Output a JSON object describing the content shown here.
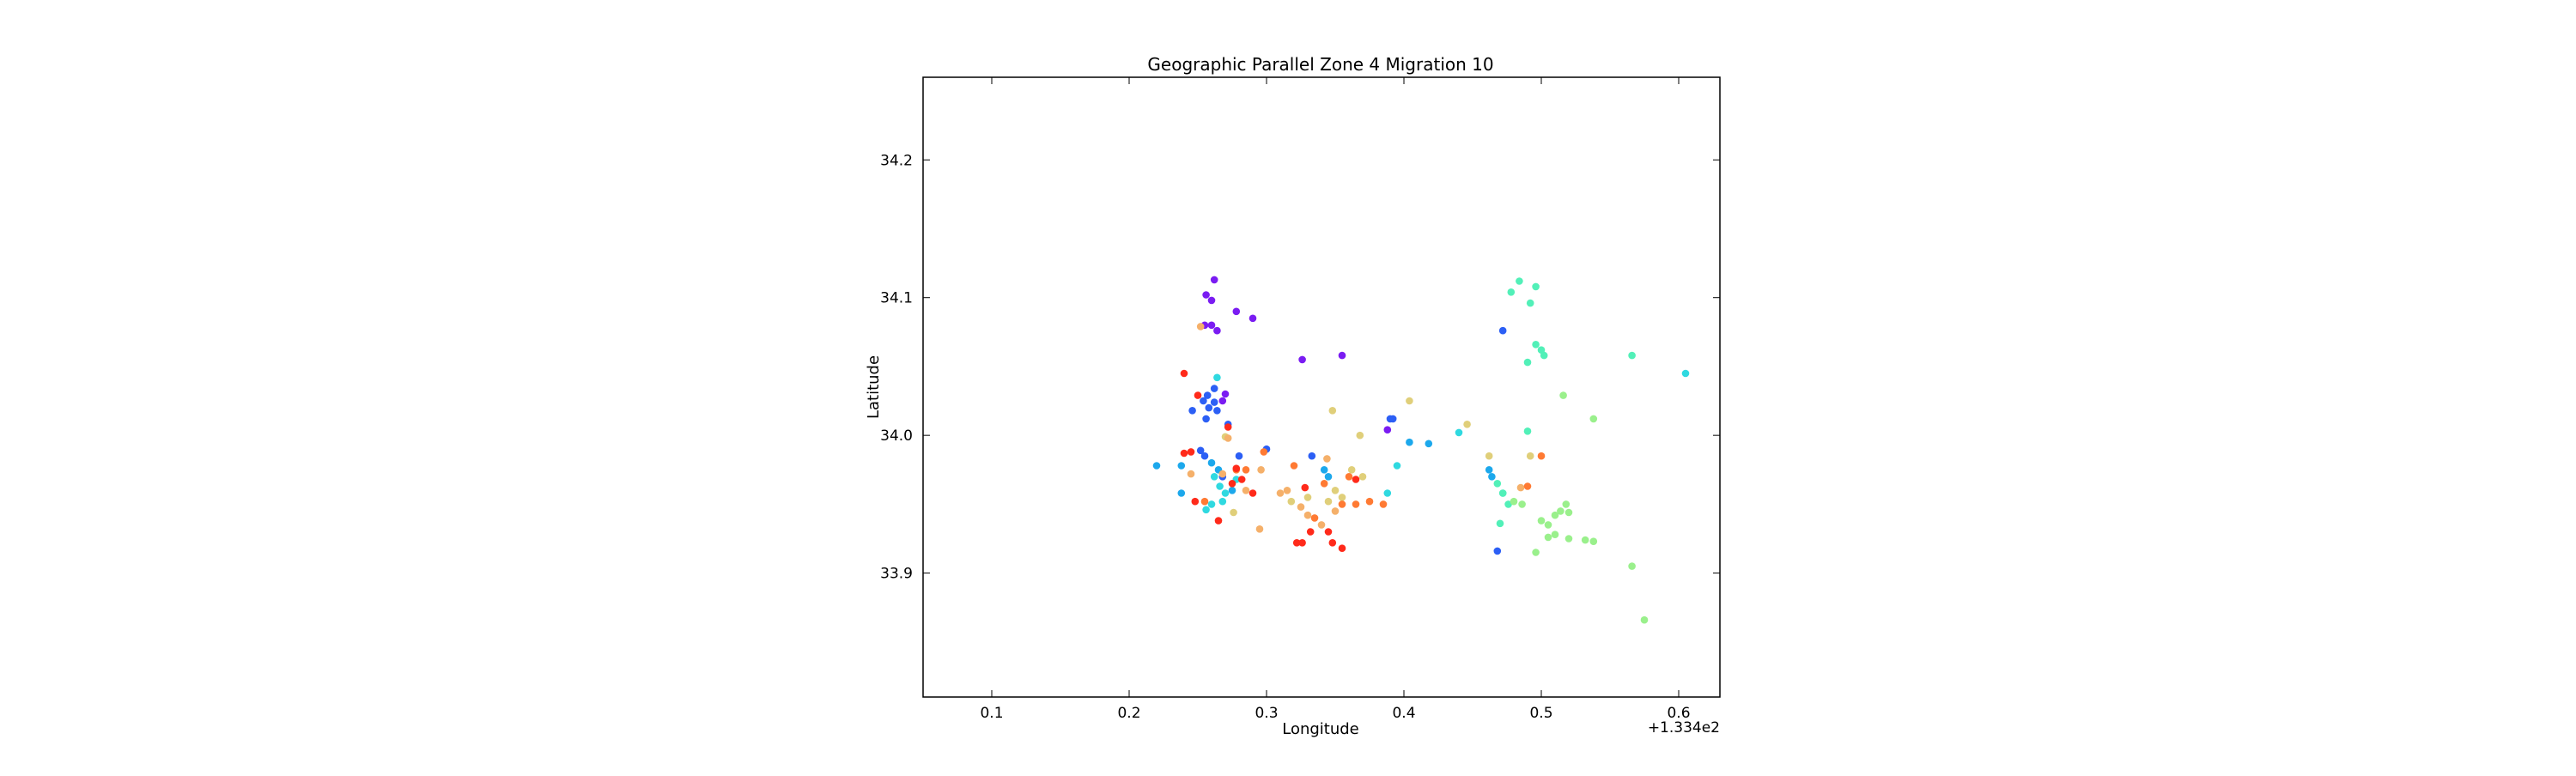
{
  "chart_data": {
    "type": "scatter",
    "title": "Geographic Parallel Zone 4 Migration 10",
    "xlabel": "Longitude",
    "ylabel": "Latitude",
    "offset_label": "+1.334e2",
    "xlim": [
      0.05,
      0.63
    ],
    "ylim": [
      33.81,
      34.26
    ],
    "xticks": [
      0.1,
      0.2,
      0.3,
      0.4,
      0.5,
      0.6
    ],
    "xtick_labels": [
      "0.1",
      "0.2",
      "0.3",
      "0.4",
      "0.5",
      "0.6"
    ],
    "yticks": [
      33.9,
      34.0,
      34.1,
      34.2
    ],
    "ytick_labels": [
      "33.9",
      "34.0",
      "34.1",
      "34.2"
    ],
    "grid": false,
    "colors": {
      "purple": "#7a1cf2",
      "blue": "#2c5ff5",
      "skyblue": "#1ca8ec",
      "cyan": "#2fd9e0",
      "aquamarine": "#52f0b8",
      "lightgreen": "#9af08c",
      "khaki": "#e0cf7a",
      "lightorange": "#f5b06a",
      "orange": "#ff7a33",
      "red": "#ff2a1a"
    },
    "points": [
      {
        "x": 0.262,
        "y": 34.113,
        "c": "purple"
      },
      {
        "x": 0.256,
        "y": 34.102,
        "c": "purple"
      },
      {
        "x": 0.26,
        "y": 34.098,
        "c": "purple"
      },
      {
        "x": 0.278,
        "y": 34.09,
        "c": "purple"
      },
      {
        "x": 0.29,
        "y": 34.085,
        "c": "purple"
      },
      {
        "x": 0.255,
        "y": 34.08,
        "c": "purple"
      },
      {
        "x": 0.26,
        "y": 34.08,
        "c": "purple"
      },
      {
        "x": 0.264,
        "y": 34.076,
        "c": "purple"
      },
      {
        "x": 0.326,
        "y": 34.055,
        "c": "purple"
      },
      {
        "x": 0.355,
        "y": 34.058,
        "c": "purple"
      },
      {
        "x": 0.388,
        "y": 34.004,
        "c": "purple"
      },
      {
        "x": 0.27,
        "y": 34.03,
        "c": "purple"
      },
      {
        "x": 0.268,
        "y": 34.025,
        "c": "purple"
      },
      {
        "x": 0.257,
        "y": 34.029,
        "c": "blue"
      },
      {
        "x": 0.262,
        "y": 34.034,
        "c": "blue"
      },
      {
        "x": 0.254,
        "y": 34.025,
        "c": "blue"
      },
      {
        "x": 0.258,
        "y": 34.02,
        "c": "blue"
      },
      {
        "x": 0.246,
        "y": 34.018,
        "c": "blue"
      },
      {
        "x": 0.256,
        "y": 34.012,
        "c": "blue"
      },
      {
        "x": 0.264,
        "y": 34.018,
        "c": "blue"
      },
      {
        "x": 0.262,
        "y": 34.024,
        "c": "blue"
      },
      {
        "x": 0.272,
        "y": 34.008,
        "c": "blue"
      },
      {
        "x": 0.252,
        "y": 33.989,
        "c": "blue"
      },
      {
        "x": 0.255,
        "y": 33.985,
        "c": "blue"
      },
      {
        "x": 0.3,
        "y": 33.99,
        "c": "blue"
      },
      {
        "x": 0.28,
        "y": 33.985,
        "c": "blue"
      },
      {
        "x": 0.392,
        "y": 34.012,
        "c": "blue"
      },
      {
        "x": 0.39,
        "y": 34.012,
        "c": "blue"
      },
      {
        "x": 0.472,
        "y": 34.076,
        "c": "blue"
      },
      {
        "x": 0.333,
        "y": 33.985,
        "c": "blue"
      },
      {
        "x": 0.468,
        "y": 33.916,
        "c": "blue"
      },
      {
        "x": 0.268,
        "y": 33.97,
        "c": "blue"
      },
      {
        "x": 0.22,
        "y": 33.978,
        "c": "skyblue"
      },
      {
        "x": 0.238,
        "y": 33.978,
        "c": "skyblue"
      },
      {
        "x": 0.238,
        "y": 33.958,
        "c": "skyblue"
      },
      {
        "x": 0.26,
        "y": 33.98,
        "c": "skyblue"
      },
      {
        "x": 0.265,
        "y": 33.975,
        "c": "skyblue"
      },
      {
        "x": 0.275,
        "y": 33.96,
        "c": "skyblue"
      },
      {
        "x": 0.342,
        "y": 33.975,
        "c": "skyblue"
      },
      {
        "x": 0.345,
        "y": 33.97,
        "c": "skyblue"
      },
      {
        "x": 0.404,
        "y": 33.995,
        "c": "skyblue"
      },
      {
        "x": 0.418,
        "y": 33.994,
        "c": "skyblue"
      },
      {
        "x": 0.462,
        "y": 33.975,
        "c": "skyblue"
      },
      {
        "x": 0.464,
        "y": 33.97,
        "c": "skyblue"
      },
      {
        "x": 0.264,
        "y": 34.042,
        "c": "cyan"
      },
      {
        "x": 0.262,
        "y": 33.97,
        "c": "cyan"
      },
      {
        "x": 0.266,
        "y": 33.963,
        "c": "cyan"
      },
      {
        "x": 0.27,
        "y": 33.958,
        "c": "cyan"
      },
      {
        "x": 0.278,
        "y": 33.968,
        "c": "cyan"
      },
      {
        "x": 0.256,
        "y": 33.946,
        "c": "cyan"
      },
      {
        "x": 0.26,
        "y": 33.95,
        "c": "cyan"
      },
      {
        "x": 0.268,
        "y": 33.952,
        "c": "cyan"
      },
      {
        "x": 0.395,
        "y": 33.978,
        "c": "cyan"
      },
      {
        "x": 0.388,
        "y": 33.958,
        "c": "cyan"
      },
      {
        "x": 0.44,
        "y": 34.002,
        "c": "cyan"
      },
      {
        "x": 0.605,
        "y": 34.045,
        "c": "cyan"
      },
      {
        "x": 0.472,
        "y": 33.958,
        "c": "cyan"
      },
      {
        "x": 0.478,
        "y": 34.104,
        "c": "aquamarine"
      },
      {
        "x": 0.484,
        "y": 34.112,
        "c": "aquamarine"
      },
      {
        "x": 0.492,
        "y": 34.096,
        "c": "aquamarine"
      },
      {
        "x": 0.496,
        "y": 34.108,
        "c": "aquamarine"
      },
      {
        "x": 0.496,
        "y": 34.066,
        "c": "aquamarine"
      },
      {
        "x": 0.5,
        "y": 34.062,
        "c": "aquamarine"
      },
      {
        "x": 0.502,
        "y": 34.058,
        "c": "aquamarine"
      },
      {
        "x": 0.49,
        "y": 34.053,
        "c": "aquamarine"
      },
      {
        "x": 0.566,
        "y": 34.058,
        "c": "aquamarine"
      },
      {
        "x": 0.49,
        "y": 34.003,
        "c": "aquamarine"
      },
      {
        "x": 0.468,
        "y": 33.965,
        "c": "aquamarine"
      },
      {
        "x": 0.472,
        "y": 33.958,
        "c": "aquamarine"
      },
      {
        "x": 0.476,
        "y": 33.95,
        "c": "aquamarine"
      },
      {
        "x": 0.47,
        "y": 33.936,
        "c": "aquamarine"
      },
      {
        "x": 0.516,
        "y": 34.029,
        "c": "lightgreen"
      },
      {
        "x": 0.538,
        "y": 34.012,
        "c": "lightgreen"
      },
      {
        "x": 0.48,
        "y": 33.952,
        "c": "lightgreen"
      },
      {
        "x": 0.486,
        "y": 33.95,
        "c": "lightgreen"
      },
      {
        "x": 0.5,
        "y": 33.938,
        "c": "lightgreen"
      },
      {
        "x": 0.505,
        "y": 33.935,
        "c": "lightgreen"
      },
      {
        "x": 0.51,
        "y": 33.942,
        "c": "lightgreen"
      },
      {
        "x": 0.514,
        "y": 33.945,
        "c": "lightgreen"
      },
      {
        "x": 0.518,
        "y": 33.95,
        "c": "lightgreen"
      },
      {
        "x": 0.52,
        "y": 33.944,
        "c": "lightgreen"
      },
      {
        "x": 0.505,
        "y": 33.926,
        "c": "lightgreen"
      },
      {
        "x": 0.51,
        "y": 33.928,
        "c": "lightgreen"
      },
      {
        "x": 0.52,
        "y": 33.925,
        "c": "lightgreen"
      },
      {
        "x": 0.532,
        "y": 33.924,
        "c": "lightgreen"
      },
      {
        "x": 0.538,
        "y": 33.923,
        "c": "lightgreen"
      },
      {
        "x": 0.496,
        "y": 33.915,
        "c": "lightgreen"
      },
      {
        "x": 0.566,
        "y": 33.905,
        "c": "lightgreen"
      },
      {
        "x": 0.575,
        "y": 33.866,
        "c": "lightgreen"
      },
      {
        "x": 0.348,
        "y": 34.018,
        "c": "khaki"
      },
      {
        "x": 0.404,
        "y": 34.025,
        "c": "khaki"
      },
      {
        "x": 0.368,
        "y": 34.0,
        "c": "khaki"
      },
      {
        "x": 0.446,
        "y": 34.008,
        "c": "khaki"
      },
      {
        "x": 0.362,
        "y": 33.975,
        "c": "khaki"
      },
      {
        "x": 0.37,
        "y": 33.97,
        "c": "khaki"
      },
      {
        "x": 0.35,
        "y": 33.96,
        "c": "khaki"
      },
      {
        "x": 0.355,
        "y": 33.955,
        "c": "khaki"
      },
      {
        "x": 0.345,
        "y": 33.952,
        "c": "khaki"
      },
      {
        "x": 0.33,
        "y": 33.955,
        "c": "khaki"
      },
      {
        "x": 0.318,
        "y": 33.952,
        "c": "khaki"
      },
      {
        "x": 0.492,
        "y": 33.985,
        "c": "khaki"
      },
      {
        "x": 0.462,
        "y": 33.985,
        "c": "khaki"
      },
      {
        "x": 0.27,
        "y": 33.999,
        "c": "khaki"
      },
      {
        "x": 0.276,
        "y": 33.944,
        "c": "khaki"
      },
      {
        "x": 0.252,
        "y": 34.079,
        "c": "lightorange"
      },
      {
        "x": 0.272,
        "y": 33.998,
        "c": "lightorange"
      },
      {
        "x": 0.344,
        "y": 33.983,
        "c": "lightorange"
      },
      {
        "x": 0.31,
        "y": 33.958,
        "c": "lightorange"
      },
      {
        "x": 0.315,
        "y": 33.96,
        "c": "lightorange"
      },
      {
        "x": 0.325,
        "y": 33.948,
        "c": "lightorange"
      },
      {
        "x": 0.33,
        "y": 33.942,
        "c": "lightorange"
      },
      {
        "x": 0.34,
        "y": 33.935,
        "c": "lightorange"
      },
      {
        "x": 0.35,
        "y": 33.945,
        "c": "lightorange"
      },
      {
        "x": 0.268,
        "y": 33.972,
        "c": "lightorange"
      },
      {
        "x": 0.285,
        "y": 33.96,
        "c": "lightorange"
      },
      {
        "x": 0.296,
        "y": 33.975,
        "c": "lightorange"
      },
      {
        "x": 0.245,
        "y": 33.972,
        "c": "lightorange"
      },
      {
        "x": 0.295,
        "y": 33.932,
        "c": "lightorange"
      },
      {
        "x": 0.485,
        "y": 33.962,
        "c": "lightorange"
      },
      {
        "x": 0.298,
        "y": 33.988,
        "c": "orange"
      },
      {
        "x": 0.32,
        "y": 33.978,
        "c": "orange"
      },
      {
        "x": 0.342,
        "y": 33.965,
        "c": "orange"
      },
      {
        "x": 0.355,
        "y": 33.95,
        "c": "orange"
      },
      {
        "x": 0.36,
        "y": 33.97,
        "c": "orange"
      },
      {
        "x": 0.365,
        "y": 33.95,
        "c": "orange"
      },
      {
        "x": 0.375,
        "y": 33.952,
        "c": "orange"
      },
      {
        "x": 0.385,
        "y": 33.95,
        "c": "orange"
      },
      {
        "x": 0.335,
        "y": 33.94,
        "c": "orange"
      },
      {
        "x": 0.285,
        "y": 33.975,
        "c": "orange"
      },
      {
        "x": 0.278,
        "y": 33.975,
        "c": "orange"
      },
      {
        "x": 0.255,
        "y": 33.952,
        "c": "orange"
      },
      {
        "x": 0.5,
        "y": 33.985,
        "c": "orange"
      },
      {
        "x": 0.49,
        "y": 33.963,
        "c": "orange"
      },
      {
        "x": 0.24,
        "y": 34.045,
        "c": "red"
      },
      {
        "x": 0.25,
        "y": 34.029,
        "c": "red"
      },
      {
        "x": 0.272,
        "y": 34.006,
        "c": "red"
      },
      {
        "x": 0.24,
        "y": 33.987,
        "c": "red"
      },
      {
        "x": 0.245,
        "y": 33.988,
        "c": "red"
      },
      {
        "x": 0.275,
        "y": 33.965,
        "c": "red"
      },
      {
        "x": 0.282,
        "y": 33.968,
        "c": "red"
      },
      {
        "x": 0.29,
        "y": 33.958,
        "c": "red"
      },
      {
        "x": 0.248,
        "y": 33.952,
        "c": "red"
      },
      {
        "x": 0.265,
        "y": 33.938,
        "c": "red"
      },
      {
        "x": 0.328,
        "y": 33.962,
        "c": "red"
      },
      {
        "x": 0.332,
        "y": 33.93,
        "c": "red"
      },
      {
        "x": 0.345,
        "y": 33.93,
        "c": "red"
      },
      {
        "x": 0.348,
        "y": 33.922,
        "c": "red"
      },
      {
        "x": 0.355,
        "y": 33.918,
        "c": "red"
      },
      {
        "x": 0.322,
        "y": 33.922,
        "c": "red"
      },
      {
        "x": 0.326,
        "y": 33.922,
        "c": "red"
      },
      {
        "x": 0.365,
        "y": 33.968,
        "c": "red"
      },
      {
        "x": 0.278,
        "y": 33.976,
        "c": "red"
      }
    ]
  }
}
